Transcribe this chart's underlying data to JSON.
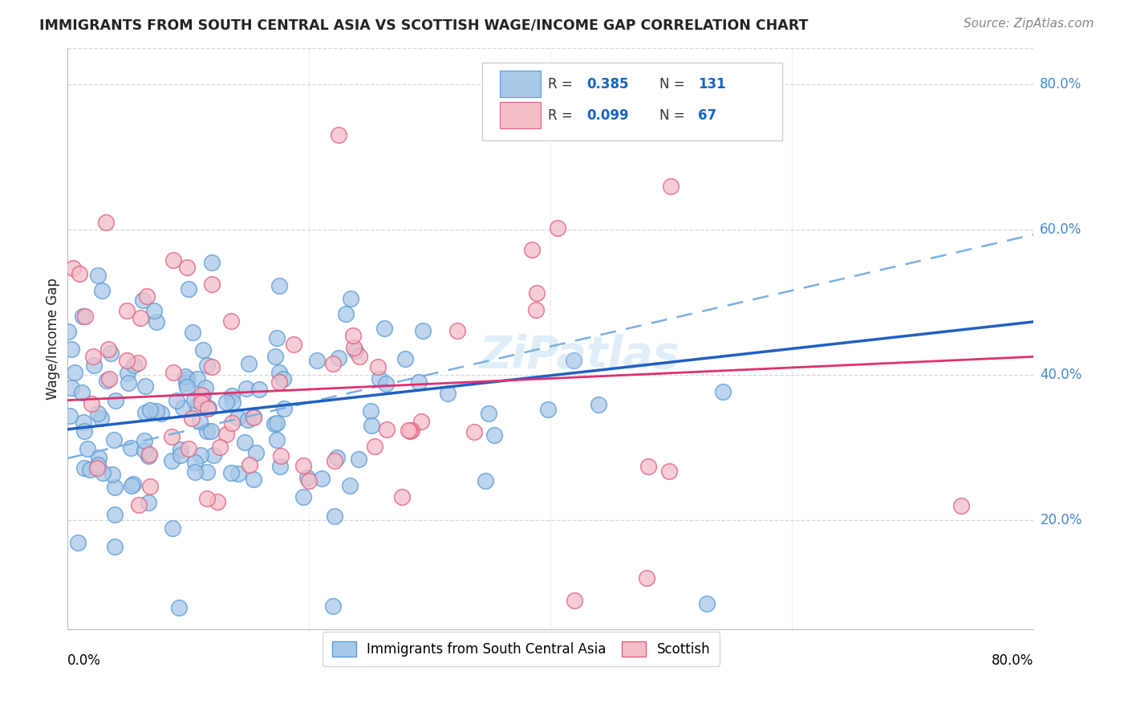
{
  "title": "IMMIGRANTS FROM SOUTH CENTRAL ASIA VS SCOTTISH WAGE/INCOME GAP CORRELATION CHART",
  "source": "Source: ZipAtlas.com",
  "ylabel": "Wage/Income Gap",
  "y_ticks": [
    "20.0%",
    "40.0%",
    "60.0%",
    "80.0%"
  ],
  "y_tick_vals": [
    0.2,
    0.4,
    0.6,
    0.8
  ],
  "x_range": [
    0.0,
    0.8
  ],
  "y_range": [
    0.05,
    0.85
  ],
  "blue_color": "#a8c8e8",
  "blue_edge_color": "#5b9bd5",
  "pink_color": "#f5bdc8",
  "pink_edge_color": "#e06080",
  "blue_line_color": "#2060c0",
  "pink_line_color": "#e03070",
  "dash_line_color": "#7ab0e0",
  "watermark": "ZiPatlas",
  "legend_R_blue": "0.385",
  "legend_N_blue": "131",
  "legend_R_pink": "0.099",
  "legend_N_pink": "67",
  "blue_intercept": 0.325,
  "blue_slope": 0.185,
  "pink_intercept": 0.365,
  "pink_slope": 0.075,
  "dash_intercept": 0.285,
  "dash_slope": 0.385,
  "background_color": "#ffffff",
  "grid_color": "#cccccc",
  "title_color": "#222222",
  "source_color": "#888888",
  "tick_label_color": "#4488cc",
  "axis_label_color": "#222222"
}
